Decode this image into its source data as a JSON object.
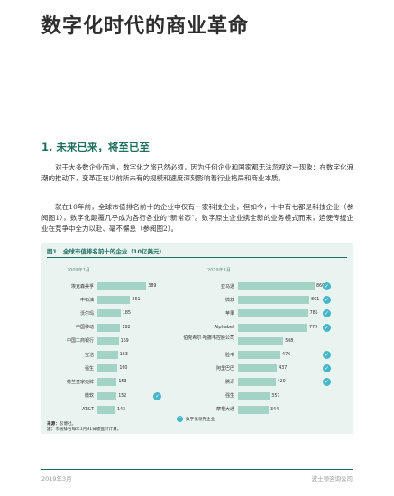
{
  "title": "数字化时代的商业革命",
  "section_heading": "1. 未来已来，将至已至",
  "paragraphs": [
    "对于大多数企业而言，数字化之旅已然必须，因为任何企业和国家都无法忽视这一现象：在数字化浪潮的推动下，变革正在以前所未有的规模和速度深刻影响着行业格局和商业本质。",
    "就在10年前，全球市值排名前十的企业中仅有一家科技企业，但如今，十中有七都是科技企业（参阅图1），数字化颠覆几乎成为各行各业的“新常态”。数字原生企业携全新的业务模式而来，迫使传统企业在竞争中全力以赴、毫不懈怠（参阅图2）。"
  ],
  "figure": {
    "heading": "图1 | 全球市值排名前十的企业（10亿美元）",
    "legend_label": "数字化领先企业",
    "source_label": "来源：",
    "source_text": "彭博社。",
    "note_label": "注：",
    "note_text": "市值排名每年1月31日收盘价计算。",
    "accent_color": "#1f6f5f",
    "bar_color": "#a3d3c5",
    "check_color": "#45b5c9"
  },
  "chart_data": [
    {
      "type": "bar",
      "orientation": "horizontal",
      "title": "2009年1月",
      "categories": [
        "埃克森美孚",
        "中石油",
        "沃尔玛",
        "中国移动",
        "中国工商银行",
        "宝洁",
        "强生",
        "荷兰皇家壳牌",
        "微软",
        "AT&T"
      ],
      "values": [
        389,
        261,
        185,
        182,
        169,
        163,
        160,
        153,
        152,
        143
      ],
      "digital_leader": [
        false,
        false,
        false,
        false,
        false,
        false,
        false,
        false,
        true,
        false
      ],
      "xlim": [
        0,
        860
      ]
    },
    {
      "type": "bar",
      "orientation": "horizontal",
      "title": "2019年1月",
      "categories": [
        "亚马逊",
        "微软",
        "苹果",
        "Alphabet",
        "伯克希尔·哈撒韦控股公司",
        "脸书",
        "阿里巴巴",
        "腾讯",
        "强生",
        "摩根大通"
      ],
      "values": [
        860,
        801,
        785,
        779,
        508,
        476,
        437,
        420,
        357,
        344
      ],
      "digital_leader": [
        true,
        true,
        true,
        true,
        false,
        true,
        true,
        true,
        false,
        false
      ],
      "xlim": [
        0,
        860
      ]
    }
  ],
  "footer": {
    "date": "2019年3月",
    "publisher": "波士顿咨询公司"
  }
}
